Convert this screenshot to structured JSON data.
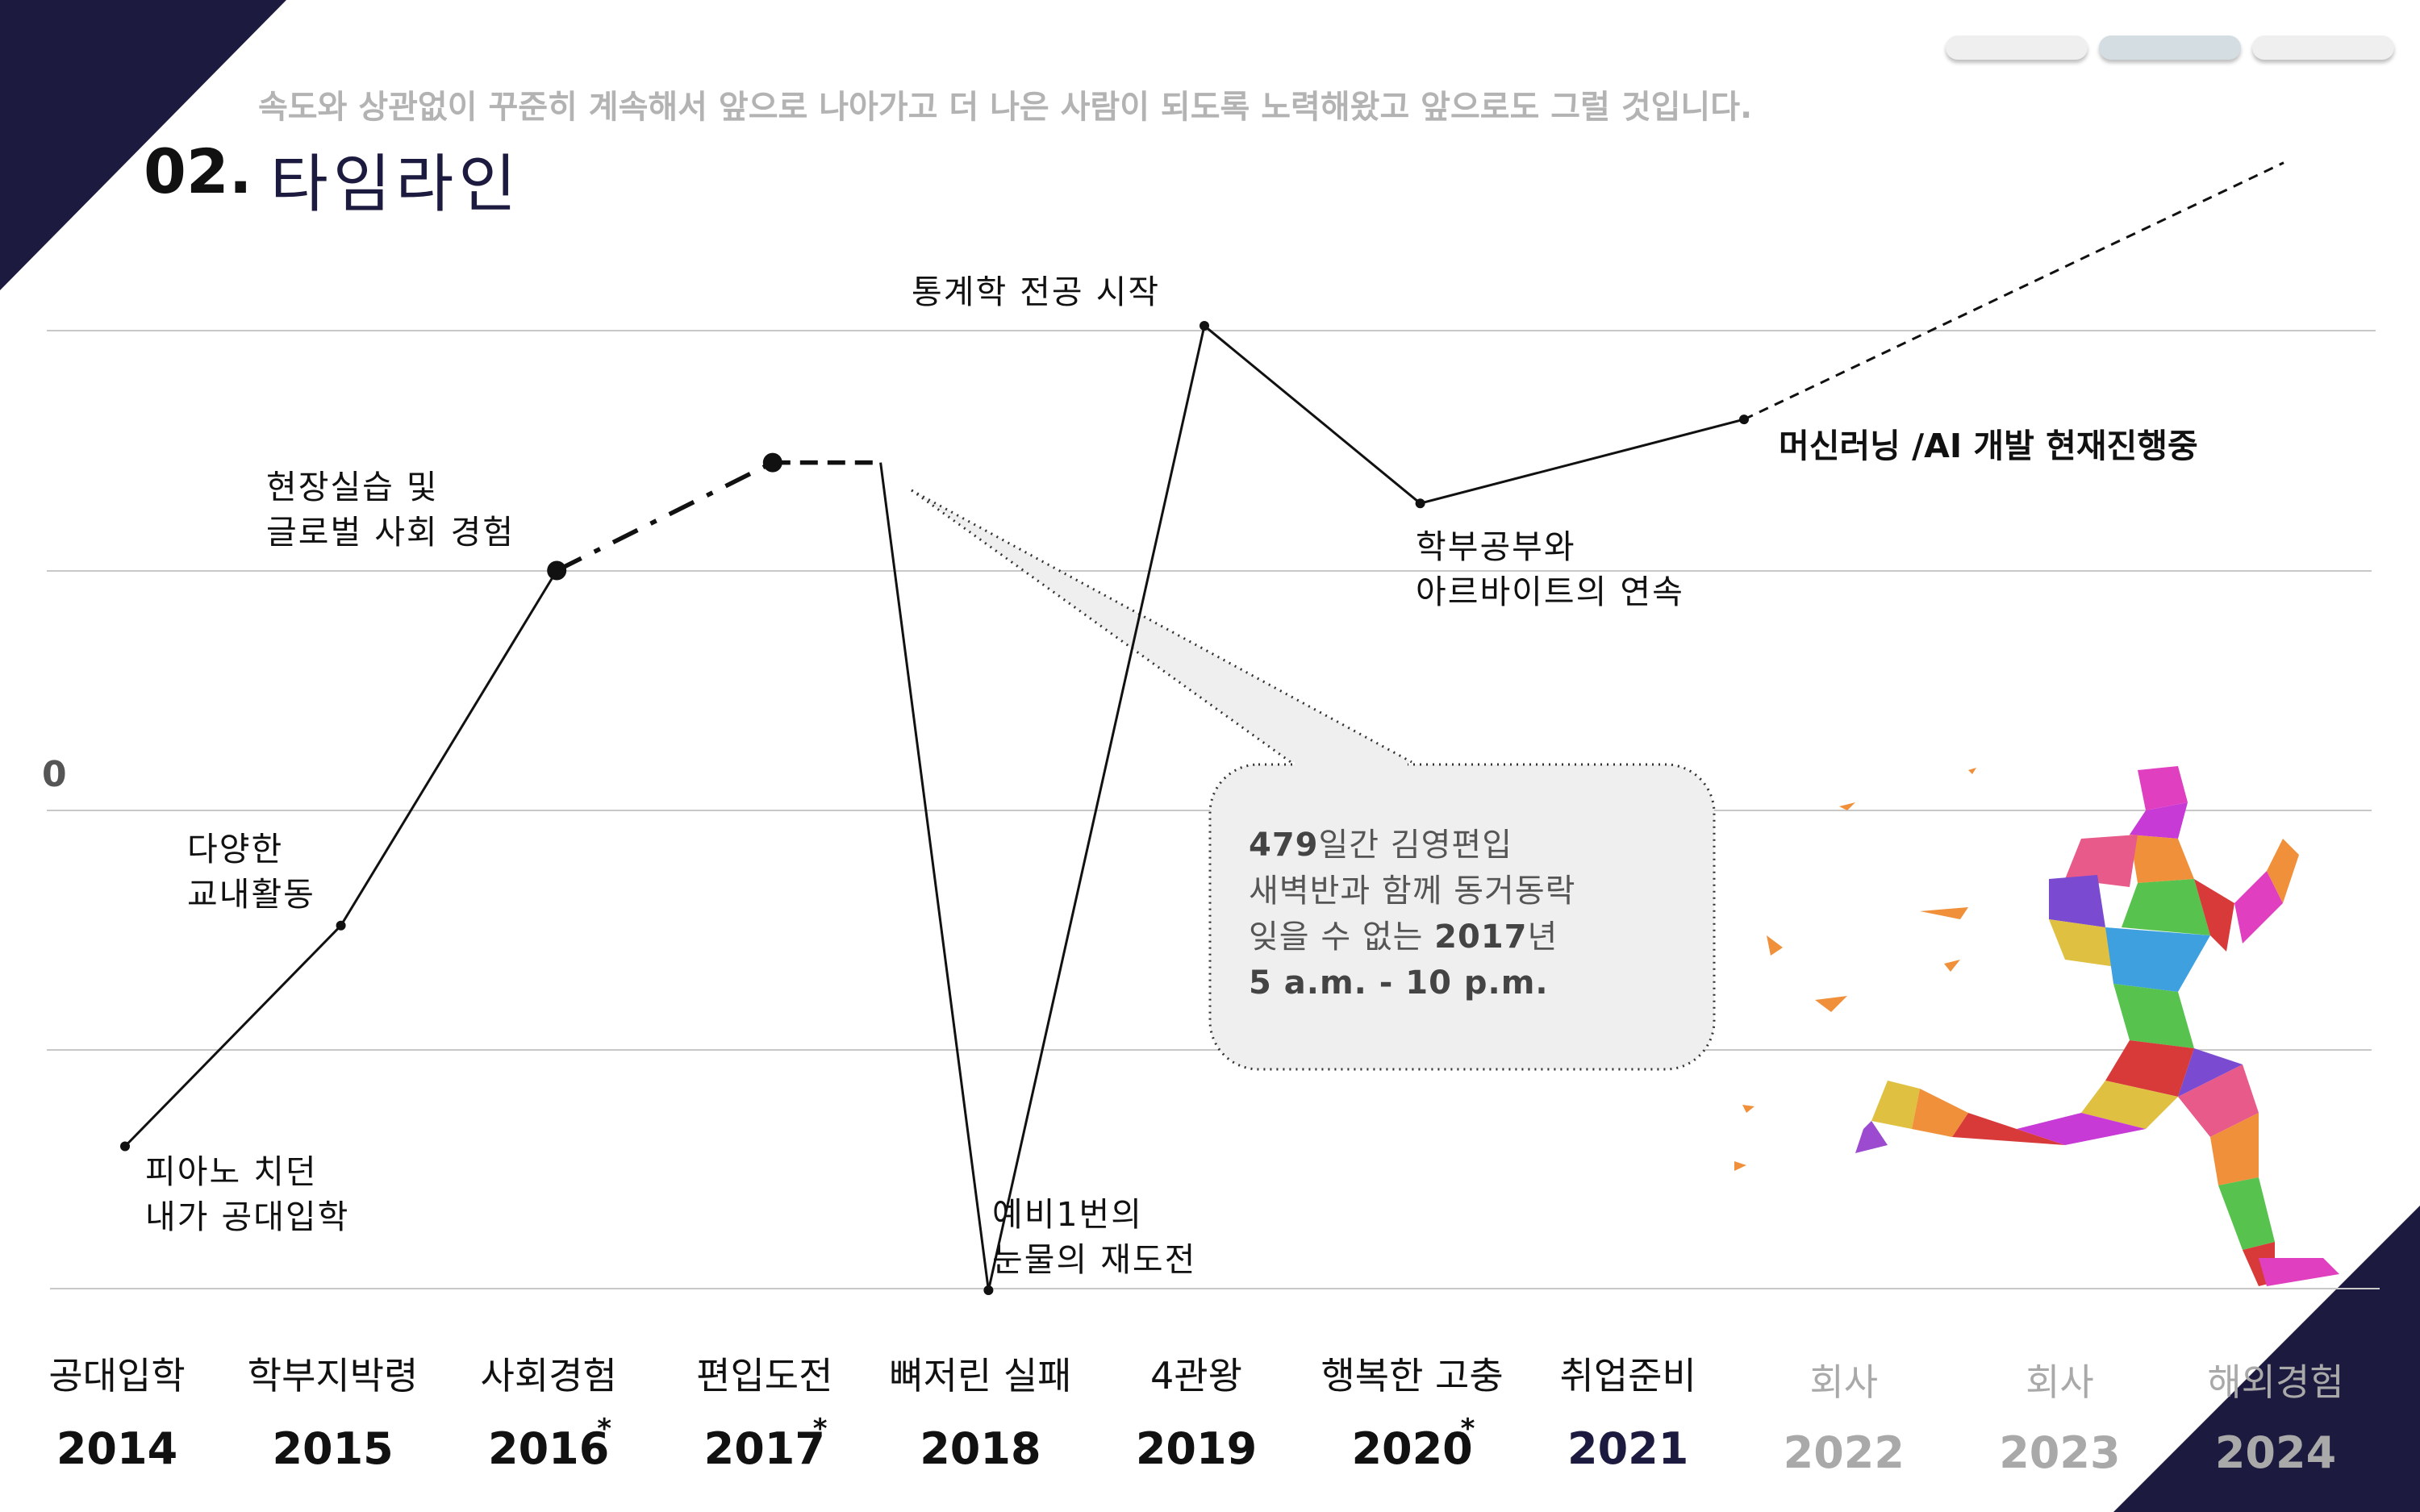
{
  "header": {
    "subtitle": "속도와 상관없이 꾸준히 계속해서 앞으로 나아가고 더 나은 사람이 되도록 노력해왔고 앞으로도 그럴 것입니다.",
    "title_number": "02.",
    "title_text": "타임라인"
  },
  "colors": {
    "corner": "#1c1a3e",
    "line": "#111111",
    "grid": "#c8c8c8",
    "bubble_fill": "#efefef",
    "dim_text": "#a9a9a9"
  },
  "annotations": {
    "a2014": [
      "피아노 치던",
      "내가 공대입학"
    ],
    "a2015": [
      "다양한",
      "교내활동"
    ],
    "a2016": [
      "현장실습 및",
      "글로벌 사회 경험"
    ],
    "a2018": [
      "예비1번의",
      "눈물의 재도전"
    ],
    "a2019": [
      "통계학 전공 시작"
    ],
    "a2020": [
      "학부공부와",
      "아르바이트의 연속"
    ],
    "a2021": "머신러닝 /AI 개발 현재진행중"
  },
  "bubble": {
    "line1_bold": "479",
    "line1_rest": "일간 김영편입",
    "line2": "새벽반과 함께 동거동락",
    "line3_pre": "잊을 수 없는 ",
    "line3_bold": "2017",
    "line3_post": "년",
    "line4": "5 a.m. - 10 p.m."
  },
  "decoration": {
    "figure": "running-man-icon"
  },
  "chart_data": {
    "type": "line",
    "title": "",
    "xlabel": "",
    "ylabel": "",
    "y_tick_labels": [
      "0"
    ],
    "grid": true,
    "categories": [
      {
        "year": "2014",
        "label": "공대입학",
        "star": false,
        "dim": false
      },
      {
        "year": "2015",
        "label": "학부지박령",
        "star": false,
        "dim": false
      },
      {
        "year": "2016",
        "label": "사회경험",
        "star": true,
        "dim": false
      },
      {
        "year": "2017",
        "label": "편입도전",
        "star": true,
        "dim": false
      },
      {
        "year": "2018",
        "label": "뼈저린 실패",
        "star": false,
        "dim": false
      },
      {
        "year": "2019",
        "label": "4관왕",
        "star": false,
        "dim": false
      },
      {
        "year": "2020",
        "label": "행복한 고충",
        "star": true,
        "dim": false
      },
      {
        "year": "2021",
        "label": "취업준비",
        "star": false,
        "dim": false
      },
      {
        "year": "2022",
        "label": "회사",
        "star": false,
        "dim": true
      },
      {
        "year": "2023",
        "label": "회사",
        "star": false,
        "dim": true
      },
      {
        "year": "2024",
        "label": "해외경험",
        "star": false,
        "dim": true
      }
    ],
    "series": [
      {
        "points": [
          {
            "x": 2014,
            "y": -1.4
          },
          {
            "x": 2015,
            "y": -0.48
          },
          {
            "x": 2016,
            "y": 1.0
          },
          {
            "x": 2017,
            "y": 1.45
          },
          {
            "x": 2017.5,
            "y": 1.45
          },
          {
            "x": 2018,
            "y": -2.0
          },
          {
            "x": 2019,
            "y": 2.02
          },
          {
            "x": 2020,
            "y": 1.28
          },
          {
            "x": 2021.5,
            "y": 1.63
          },
          {
            "x": 2024,
            "y": 2.7
          }
        ],
        "segment_styles": [
          "solid",
          "solid",
          "dashdot",
          "dashed-bold",
          "solid",
          "solid",
          "solid",
          "solid",
          "dashed"
        ]
      }
    ]
  }
}
